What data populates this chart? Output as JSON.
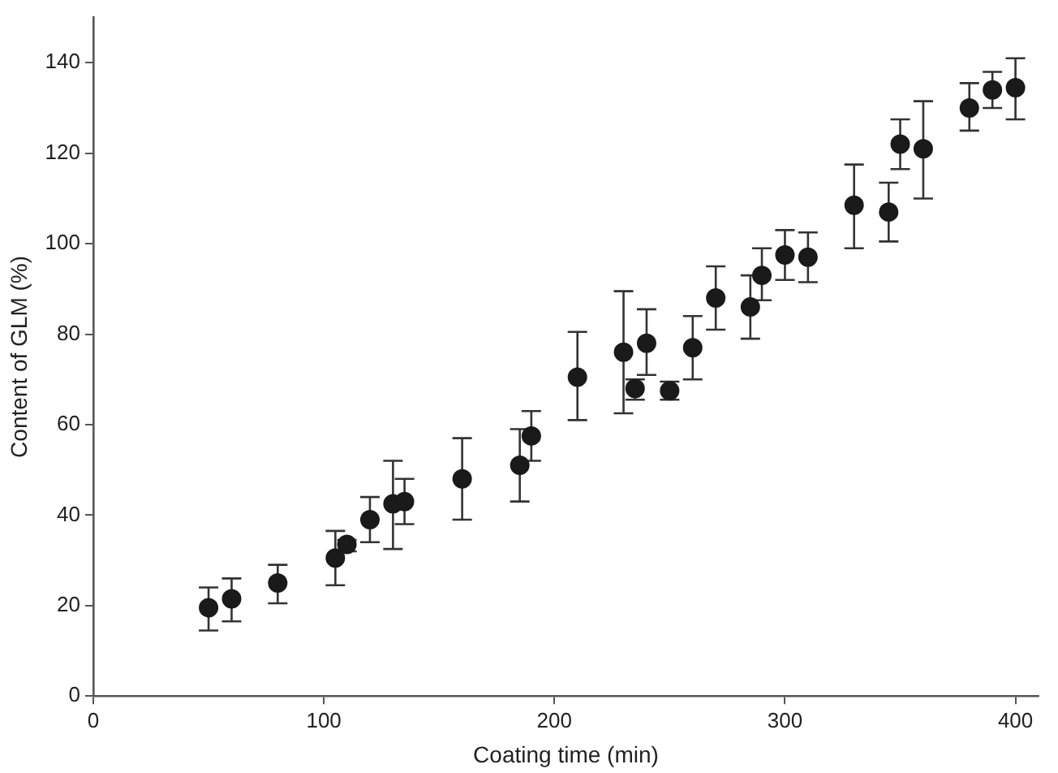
{
  "chart_data": {
    "type": "scatter",
    "xlabel": "Coating time (min)",
    "ylabel": "Content of GLM (%)",
    "x": [
      50,
      60,
      80,
      105,
      110,
      120,
      130,
      135,
      160,
      185,
      190,
      210,
      230,
      235,
      240,
      250,
      260,
      270,
      285,
      290,
      300,
      310,
      330,
      345,
      350,
      360,
      380,
      390,
      400
    ],
    "values": [
      19.5,
      21.5,
      25,
      30.5,
      33.5,
      39,
      42.5,
      43,
      48,
      51,
      57.5,
      70.5,
      76,
      68,
      78,
      67.5,
      77,
      88,
      86,
      93,
      97.5,
      97,
      108.5,
      107,
      122,
      121,
      130,
      134,
      134.5
    ],
    "errors": [
      [
        14.5,
        24
      ],
      [
        16.5,
        26
      ],
      [
        20.5,
        29
      ],
      [
        24.5,
        36.5
      ],
      [
        32,
        34.5
      ],
      [
        34,
        44
      ],
      [
        32.5,
        52
      ],
      [
        38,
        48
      ],
      [
        39,
        57
      ],
      [
        43,
        59
      ],
      [
        52,
        63
      ],
      [
        61,
        80.5
      ],
      [
        62.5,
        89.5
      ],
      [
        65.5,
        70
      ],
      [
        71,
        85.5
      ],
      [
        65.5,
        69.5
      ],
      [
        70,
        84
      ],
      [
        81,
        95
      ],
      [
        79,
        93
      ],
      [
        87.5,
        99
      ],
      [
        92,
        103
      ],
      [
        91.5,
        102.5
      ],
      [
        99,
        117.5
      ],
      [
        100.5,
        113.5
      ],
      [
        116.5,
        127.5
      ],
      [
        110,
        131.5
      ],
      [
        125,
        135.5
      ],
      [
        130,
        138
      ],
      [
        127.5,
        141
      ]
    ],
    "color": "#1a1a1a",
    "marker": "circle",
    "grid": false,
    "legend": false,
    "xlim": [
      0,
      410
    ],
    "xticks": [
      0,
      100,
      200,
      300,
      400
    ],
    "ylim": [
      0,
      150
    ],
    "yticks": [
      0,
      20,
      40,
      60,
      80,
      100,
      120,
      140
    ]
  }
}
